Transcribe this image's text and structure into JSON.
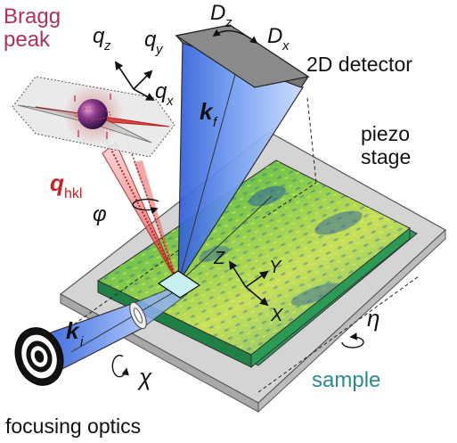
{
  "labels": {
    "bragg_line1": "Bragg",
    "bragg_line2": "peak",
    "qz": "q",
    "qz_sub": "z",
    "qy": "q",
    "qy_sub": "y",
    "qx": "q",
    "qx_sub": "x",
    "dz": "D",
    "dz_sub": "z",
    "dx": "D",
    "dx_sub": "x",
    "detector": "2D detector",
    "kf": "k",
    "kf_sub": "f",
    "piezo_line1": "piezo",
    "piezo_line2": "stage",
    "qhkl": "q",
    "qhkl_sub": "hkl",
    "phi": "φ",
    "axis_z": "Z",
    "axis_y": "Y",
    "axis_x": "X",
    "eta": "η",
    "ki": "k",
    "ki_sub": "i",
    "chi": "χ",
    "sample": "sample",
    "optics": "focusing optics"
  },
  "colors": {
    "bragg": "#b0305a",
    "qhkl": "#cc1f1f",
    "sample_text": "#2a8a8e",
    "beam_blue": "#4f7be8",
    "stage_gray": "#d9d9d9",
    "sample_edge": "#3aa35a"
  }
}
